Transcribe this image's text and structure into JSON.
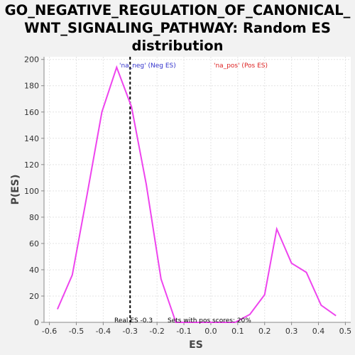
{
  "colors": {
    "curve": "#ee44ee",
    "neg": "#3333cc",
    "pos": "#dd2222",
    "grid": "#e4e4e4",
    "axis": "#888888"
  },
  "chart_data": {
    "type": "line",
    "title_lines": [
      "GO_NEGATIVE_REGULATION_OF_CANONICAL_",
      "WNT_SIGNALING_PATHWAY: Random ES",
      "distribution"
    ],
    "xlabel": "ES",
    "ylabel": "P(ES)",
    "xlim": [
      -0.62,
      0.52
    ],
    "ylim": [
      0,
      202
    ],
    "xticks": [
      "-0.6",
      "-0.5",
      "-0.4",
      "-0.3",
      "-0.2",
      "-0.1",
      "0.0",
      "0.1",
      "0.2",
      "0.3",
      "0.4",
      "0.5"
    ],
    "yticks": [
      "0",
      "20",
      "40",
      "60",
      "80",
      "100",
      "120",
      "140",
      "160",
      "180",
      "200"
    ],
    "grid": true,
    "series": [
      {
        "x": [
          -0.57,
          -0.515,
          -0.46,
          -0.405,
          -0.35,
          -0.295,
          -0.24,
          -0.185,
          -0.13,
          -0.075,
          -0.02,
          0.035,
          0.09,
          0.145,
          0.2,
          0.245,
          0.3,
          0.355,
          0.41,
          0.465
        ],
        "y": [
          10,
          36,
          97,
          160,
          194,
          164,
          105,
          33,
          0,
          0,
          0,
          0,
          0,
          6,
          21,
          71,
          45,
          38,
          13,
          5
        ]
      }
    ],
    "real_es": {
      "x": -0.3,
      "label": "Real ES -0.3"
    },
    "sets_label": "Sets with pos scores: 20%",
    "legend": {
      "neg": "'na_neg' (Neg ES)",
      "pos": "'na_pos' (Pos ES)"
    }
  }
}
